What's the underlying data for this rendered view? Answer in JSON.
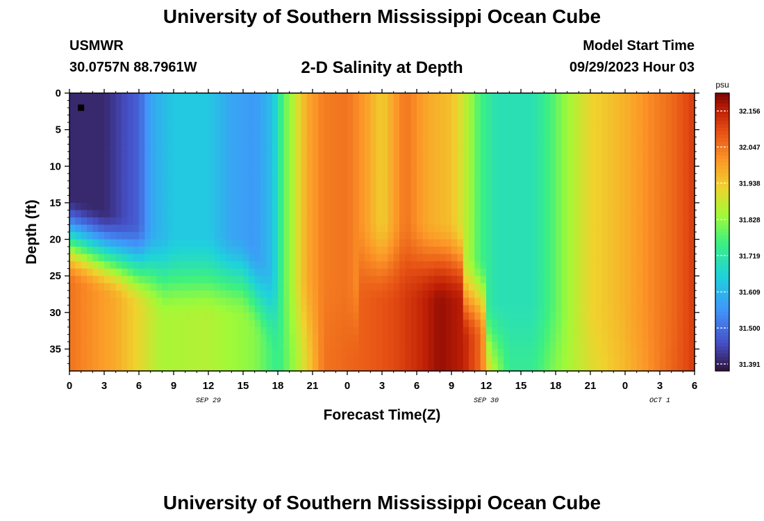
{
  "header": {
    "title": "University of Southern Mississippi Ocean Cube",
    "station_id": "USMWR",
    "station_coords": "30.0757N  88.7961W",
    "plot_title": "2-D Salinity at Depth",
    "model_start_label": "Model Start Time",
    "model_start_time": "09/29/2023 Hour 03"
  },
  "footer": {
    "title": "University of Southern Mississippi Ocean Cube"
  },
  "chart_data": {
    "type": "heatmap",
    "title": "2-D Salinity at Depth",
    "xlabel": "Forecast Time(Z)",
    "ylabel": "Depth (ft)",
    "x_ticks": [
      "0",
      "3",
      "6",
      "9",
      "12",
      "15",
      "18",
      "21",
      "0",
      "3",
      "6",
      "9",
      "12",
      "15",
      "18",
      "21",
      "0",
      "3",
      "6"
    ],
    "x_range_hours": [
      0,
      54
    ],
    "date_labels": [
      {
        "text": "SEP 29",
        "hour": 12
      },
      {
        "text": "SEP 30",
        "hour": 36
      },
      {
        "text": "OCT 1",
        "hour": 51
      }
    ],
    "y_ticks": [
      "0",
      "5",
      "10",
      "15",
      "20",
      "25",
      "30",
      "35"
    ],
    "ylim": [
      38,
      0
    ],
    "colorbar": {
      "units": "psu",
      "min": 31.37,
      "max": 32.21,
      "ticks": [
        "32.156",
        "32.047",
        "31.938",
        "31.828",
        "31.719",
        "31.609",
        "31.500",
        "31.391"
      ]
    },
    "marker": {
      "hour": 1,
      "depth": 2
    },
    "surface_profile": [
      [
        0,
        31.4
      ],
      [
        3,
        31.4
      ],
      [
        6,
        31.48
      ],
      [
        7,
        31.58
      ],
      [
        9,
        31.64
      ],
      [
        12,
        31.64
      ],
      [
        14,
        31.58
      ],
      [
        16,
        31.56
      ],
      [
        17.5,
        31.62
      ],
      [
        18.5,
        31.78
      ],
      [
        19.5,
        31.88
      ],
      [
        20.5,
        31.98
      ],
      [
        22,
        32.04
      ],
      [
        24,
        32.05
      ],
      [
        25.5,
        32.0
      ],
      [
        27,
        31.93
      ],
      [
        29,
        32.05
      ],
      [
        31,
        31.98
      ],
      [
        33,
        31.95
      ],
      [
        34.5,
        31.85
      ],
      [
        35.5,
        31.76
      ],
      [
        37,
        31.7
      ],
      [
        40,
        31.7
      ],
      [
        41.5,
        31.76
      ],
      [
        43,
        31.84
      ],
      [
        45,
        31.92
      ],
      [
        47.5,
        31.96
      ],
      [
        50,
        32.02
      ],
      [
        52,
        32.06
      ],
      [
        54,
        32.12
      ]
    ],
    "bottom_profile": [
      [
        0,
        32.05
      ],
      [
        4,
        31.98
      ],
      [
        8,
        31.85
      ],
      [
        12,
        31.86
      ],
      [
        16,
        31.82
      ],
      [
        18,
        31.74
      ],
      [
        20,
        31.88
      ],
      [
        22,
        32.05
      ],
      [
        26,
        32.08
      ],
      [
        28,
        32.1
      ],
      [
        30,
        32.14
      ],
      [
        32,
        32.19
      ],
      [
        34,
        32.16
      ],
      [
        35.5,
        32.06
      ],
      [
        36.5,
        31.88
      ],
      [
        38,
        31.74
      ],
      [
        40,
        31.74
      ],
      [
        42,
        31.82
      ],
      [
        45,
        31.9
      ],
      [
        48,
        31.96
      ],
      [
        51,
        32.04
      ],
      [
        54,
        32.12
      ]
    ]
  }
}
